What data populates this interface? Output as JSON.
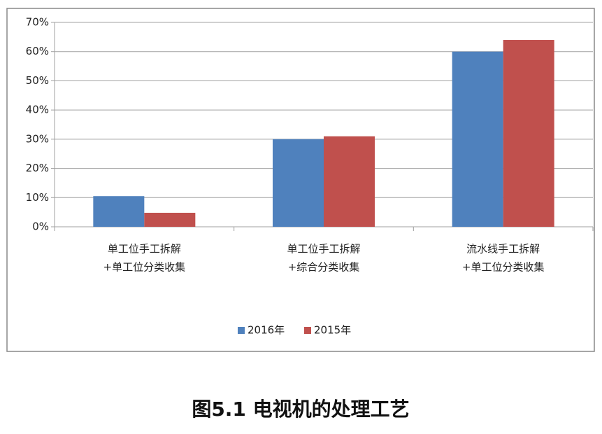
{
  "chart_data": {
    "type": "bar",
    "categories": [
      [
        "单工位手工拆解",
        "+单工位分类收集"
      ],
      [
        "单工位手工拆解",
        "+综合分类收集"
      ],
      [
        "流水线手工拆解",
        "+单工位分类收集"
      ]
    ],
    "series": [
      {
        "name": "2016年",
        "color": "#4f81bd",
        "values": [
          10.5,
          30,
          60
        ]
      },
      {
        "name": "2015年",
        "color": "#c0504d",
        "values": [
          4.8,
          31,
          64
        ]
      }
    ],
    "ylim": [
      0,
      70
    ],
    "yticks": [
      {
        "value": 0,
        "label": "0%"
      },
      {
        "value": 10,
        "label": "10%"
      },
      {
        "value": 20,
        "label": "20%"
      },
      {
        "value": 30,
        "label": "30%"
      },
      {
        "value": 40,
        "label": "40%"
      },
      {
        "value": 50,
        "label": "50%"
      },
      {
        "value": 60,
        "label": "60%"
      },
      {
        "value": 70,
        "label": "70%"
      }
    ],
    "grid": true,
    "legend": "bottom",
    "caption": "图5.1 电视机的处理工艺"
  }
}
